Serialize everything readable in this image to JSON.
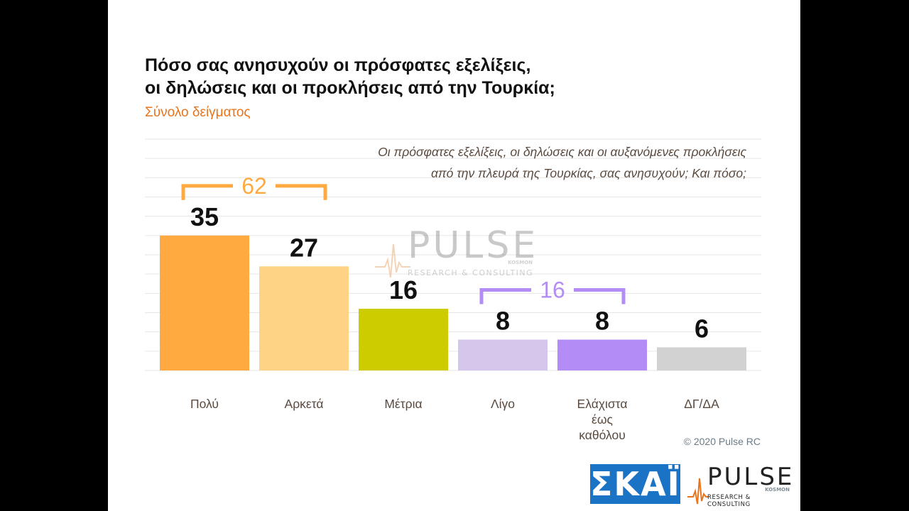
{
  "title_line1": "Πόσο σας ανησυχούν οι πρόσφατες εξελίξεις,",
  "title_line2": "οι δηλώσεις και οι προκλήσεις από την Τουρκία;",
  "subtitle": "Σύνολο δείγματος",
  "question_line1": "Οι πρόσφατες εξελίξεις, οι δηλώσεις και οι αυξανόμενες προκλήσεις",
  "question_line2": "από την πλευρά της Τουρκίας, σας ανησυχούν; Και πόσο;",
  "copyright": "© 2020 Pulse RC",
  "logos": {
    "skai": "ΣΚΑΪ",
    "pulse_word": "PULSE",
    "pulse_kosmos": "KOSMON",
    "pulse_tagline": "RESEARCH & CONSULTING"
  },
  "chart_data": {
    "type": "bar",
    "categories": [
      [
        "Πολύ"
      ],
      [
        "Αρκετά"
      ],
      [
        "Μέτρια"
      ],
      [
        "Λίγο"
      ],
      [
        "Ελάχιστα",
        "έως",
        "καθόλου"
      ],
      [
        "ΔΓ/ΔΑ"
      ]
    ],
    "values": [
      35,
      27,
      16,
      8,
      8,
      6
    ],
    "colors": [
      "#ffaa40",
      "#ffd386",
      "#cccc00",
      "#d5c6ec",
      "#b48cf5",
      "#d2d2d2"
    ],
    "groups": [
      {
        "label": "62",
        "from": 0,
        "to": 1,
        "color": "#ffaa40"
      },
      {
        "label": "16",
        "from": 3,
        "to": 4,
        "color": "#b48cf5"
      }
    ],
    "ylim": [
      0,
      60
    ],
    "grid": true
  }
}
